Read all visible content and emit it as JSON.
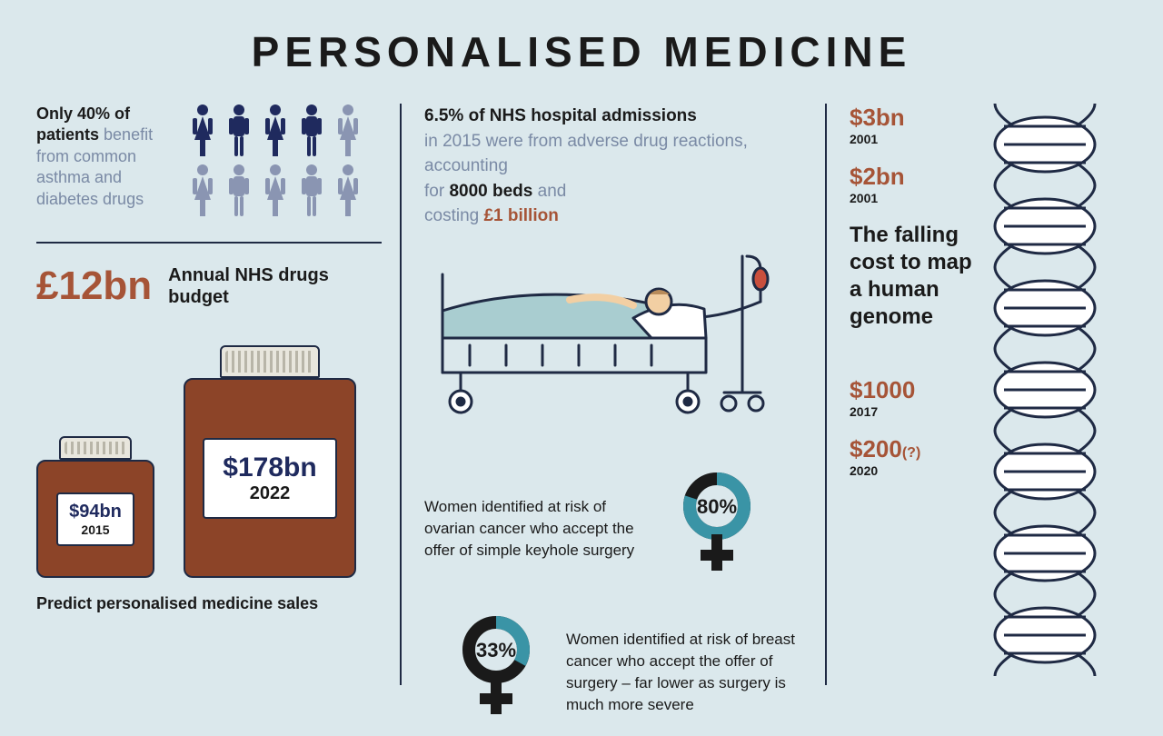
{
  "colors": {
    "background": "#dbe8ec",
    "text_dark": "#1a1a1a",
    "text_muted": "#7a8aa5",
    "navy": "#1f2a5e",
    "navy_light": "#6b7a9c",
    "rust": "#a65437",
    "rust_dark": "#8c4428",
    "teal": "#3a94a6",
    "blanket": "#a9cdd0",
    "bed_frame": "#5b6d8a",
    "outline": "#1f2a44",
    "cap": "#e8e6dd"
  },
  "title": "PERSONALISED MEDICINE",
  "left": {
    "patients": {
      "line1_bold": "Only 40% of patients",
      "line2_light": "benefit from common asthma and diabetes drugs",
      "highlighted_count": 4,
      "total_count": 10,
      "icon_colors": {
        "on": "#1f2a5e",
        "off": "#8a95b2"
      }
    },
    "budget": {
      "amount": "£12bn",
      "label": "Annual NHS drugs budget",
      "amount_color": "#a65437"
    },
    "bottles": {
      "fill_color": "#8c4428",
      "small": {
        "amount": "$94bn",
        "year": "2015"
      },
      "large": {
        "amount": "$178bn",
        "year": "2022"
      }
    },
    "predict_label": "Predict personalised medicine sales"
  },
  "mid": {
    "nhs": {
      "l1_bold": "6.5% of NHS hospital admissions",
      "l2_grey": "in 2015 were from adverse drug reactions, accounting",
      "l3_grey_a": "for ",
      "l3_bold": "8000 beds",
      "l3_grey_b": " and",
      "l4_grey": "costing ",
      "l4_bold": "£1 billion",
      "cost_color": "#a65437"
    },
    "risk1": {
      "pct": 80,
      "pct_label": "80%",
      "text": "Women identified at risk of ovarian cancer who accept the offer of simple keyhole surgery"
    },
    "risk2": {
      "pct": 33,
      "pct_label": "33%",
      "text": "Women identified at risk of breast cancer who accept the offer of surgery – far lower as surgery is much more severe"
    },
    "donut": {
      "ring_bg": "#1a1a1a",
      "ring_fg": "#3a94a6"
    }
  },
  "right": {
    "prices": [
      {
        "amount": "$3bn",
        "year": "2001",
        "suffix": ""
      },
      {
        "amount": "$2bn",
        "year": "2001",
        "suffix": ""
      },
      {
        "amount": "$1000",
        "year": "2017",
        "suffix": ""
      },
      {
        "amount": "$200",
        "year": "2020",
        "suffix": "(?)"
      }
    ],
    "price_color": "#a65437",
    "desc": "The falling cost to map a human genome"
  }
}
